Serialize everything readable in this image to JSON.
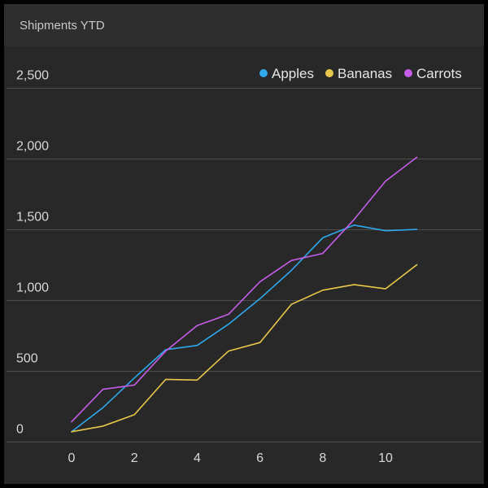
{
  "panel": {
    "title": "Shipments YTD"
  },
  "colors": {
    "background": "#282828",
    "header": "#2e2e2e",
    "grid": "#4e4e4e",
    "text": "#d8d8d8"
  },
  "chart_data": {
    "type": "line",
    "title": "Shipments YTD",
    "xlabel": "",
    "ylabel": "",
    "xlim": [
      -0.5,
      12.5
    ],
    "ylim": [
      0,
      2500
    ],
    "x_ticks": [
      0,
      2,
      4,
      6,
      8,
      10
    ],
    "x_tick_labels": [
      "0",
      "2",
      "4",
      "6",
      "8",
      "10"
    ],
    "y_ticks": [
      0,
      500,
      1000,
      1500,
      2000,
      2500
    ],
    "y_tick_labels": [
      "0",
      "500",
      "1,000",
      "1,500",
      "2,000",
      "2,500"
    ],
    "grid": true,
    "legend_position": "top-right",
    "x": [
      0,
      1,
      2,
      3,
      4,
      5,
      6,
      7,
      8,
      9,
      10,
      11
    ],
    "series": [
      {
        "name": "Apples",
        "color": "#2fa8ec",
        "values": [
          70,
          240,
          450,
          650,
          680,
          830,
          1010,
          1210,
          1440,
          1530,
          1490,
          1500
        ]
      },
      {
        "name": "Bananas",
        "color": "#e8c84a",
        "values": [
          70,
          110,
          190,
          440,
          435,
          640,
          700,
          970,
          1070,
          1110,
          1080,
          1250
        ]
      },
      {
        "name": "Carrots",
        "color": "#c45de8",
        "values": [
          140,
          370,
          400,
          640,
          820,
          900,
          1130,
          1280,
          1330,
          1570,
          1840,
          2010
        ]
      }
    ]
  }
}
